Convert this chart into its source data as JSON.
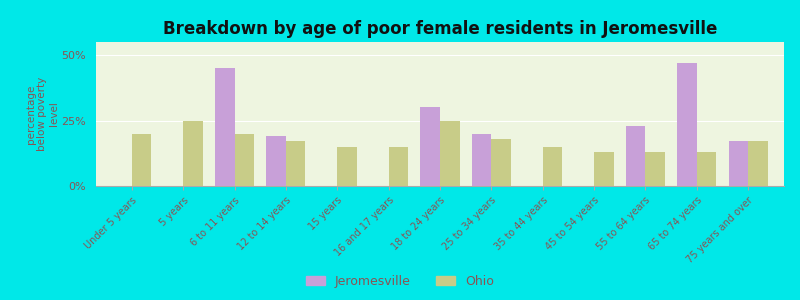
{
  "title": "Breakdown by age of poor female residents in Jeromesville",
  "ylabel": "percentage\nbelow poverty\nlevel",
  "categories": [
    "Under 5 years",
    "5 years",
    "6 to 11 years",
    "12 to 14 years",
    "15 years",
    "16 and 17 years",
    "18 to 24 years",
    "25 to 34 years",
    "35 to 44 years",
    "45 to 54 years",
    "55 to 64 years",
    "65 to 74 years",
    "75 years and over"
  ],
  "jeromesville": [
    0,
    0,
    45,
    19,
    0,
    0,
    30,
    20,
    0,
    0,
    23,
    47,
    17
  ],
  "ohio": [
    20,
    25,
    20,
    17,
    15,
    15,
    25,
    18,
    15,
    13,
    13,
    13,
    17
  ],
  "jeromesville_color": "#c8a0d8",
  "ohio_color": "#c8cc88",
  "background_color": "#00e8e8",
  "plot_bg_color": "#eef5e0",
  "yticks": [
    0,
    25,
    50
  ],
  "ytick_labels": [
    "0%",
    "25%",
    "50%"
  ],
  "ylim": [
    0,
    55
  ],
  "bar_width": 0.38,
  "title_fontsize": 12,
  "axis_label_color": "#885555",
  "tick_label_color": "#885555",
  "legend_labels": [
    "Jeromesville",
    "Ohio"
  ]
}
